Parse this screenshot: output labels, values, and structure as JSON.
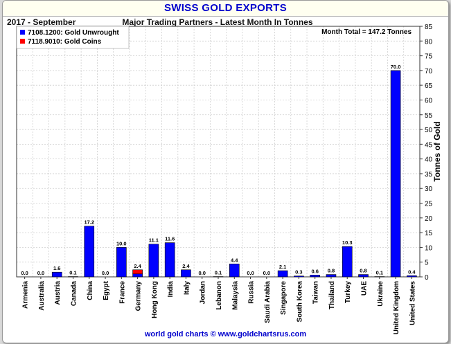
{
  "header": {
    "title": "SWISS GOLD EXPORTS",
    "date": "2017 - September",
    "subtitle": "Major Trading Partners - Latest Month In Tonnes"
  },
  "footer": "world gold charts © www.goldchartsrus.com",
  "colors": {
    "unwrought": "#0000ff",
    "coins": "#ff0000",
    "title": "#0000cc"
  },
  "chart_data": {
    "type": "bar",
    "title": "SWISS GOLD EXPORTS",
    "subtitle": "Major Trading Partners - Latest Month In Tonnes",
    "ylabel": "Tonnes of Gold",
    "ylim": [
      0,
      85
    ],
    "yticks": [
      0,
      5,
      10,
      15,
      20,
      25,
      30,
      35,
      40,
      45,
      50,
      55,
      60,
      65,
      70,
      75,
      80,
      85
    ],
    "grid": true,
    "legend_position": "top-left",
    "annotation": "Month Total = 147.2 Tonnes",
    "categories": [
      "Armenia",
      "Australia",
      "Austria",
      "Canada",
      "China",
      "Egypt",
      "France",
      "Germany",
      "Hong Kong",
      "India",
      "Italy",
      "Jordan",
      "Lebanon",
      "Malaysia",
      "Russia",
      "Saudi Arabia",
      "Singapore",
      "South Korea",
      "Taiwan",
      "Thailand",
      "Turkey",
      "UAE",
      "Ukraine",
      "United Kingdom",
      "United States"
    ],
    "totals": [
      "0.0",
      "0.0",
      "1.6",
      "0.1",
      "17.2",
      "0.0",
      "10.0",
      "2.4",
      "11.1",
      "11.6",
      "2.4",
      "0.0",
      "0.1",
      "4.4",
      "0.0",
      "0.0",
      "2.1",
      "0.3",
      "0.6",
      "0.8",
      "10.3",
      "0.8",
      "0.1",
      "70.0",
      "0.4"
    ],
    "series": [
      {
        "name": "7108.1200: Gold Unwrought",
        "color": "#0000ff",
        "values": [
          0.0,
          0.0,
          1.6,
          0.1,
          17.2,
          0.0,
          10.0,
          1.0,
          11.1,
          11.6,
          2.4,
          0.0,
          0.1,
          4.4,
          0.0,
          0.0,
          2.1,
          0.3,
          0.6,
          0.8,
          10.3,
          0.8,
          0.1,
          70.0,
          0.4
        ]
      },
      {
        "name": "7118.9010: Gold Coins",
        "color": "#ff0000",
        "values": [
          0,
          0,
          0,
          0,
          0,
          0,
          0,
          1.4,
          0,
          0,
          0,
          0,
          0,
          0,
          0,
          0,
          0,
          0,
          0,
          0,
          0,
          0,
          0,
          0,
          0
        ]
      }
    ]
  }
}
